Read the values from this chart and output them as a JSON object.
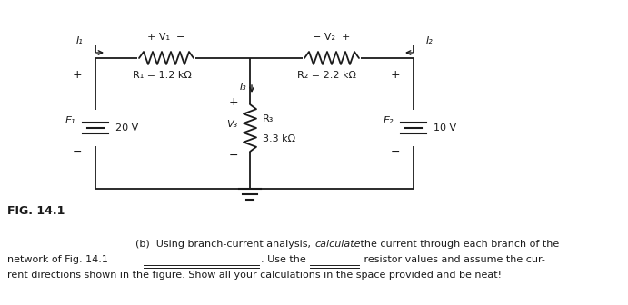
{
  "fig_label": "FIG. 14.1",
  "R1_label": "R₁ = 1.2 kΩ",
  "R2_label": "R₂ = 2.2 kΩ",
  "R3_top": "R₃",
  "R3_bot": "3.3 kΩ",
  "E1_label": "E₁",
  "E1_value": "20 V",
  "E2_label": "E₂",
  "E2_value": "10 V",
  "V1_label": "+ V₁  −",
  "V2_label": "− V₂  +",
  "V3_label": "V₃",
  "I1_label": "I₁",
  "I2_label": "I₂",
  "I3_label": "I₃",
  "bg_color": "#ffffff",
  "line_color": "#1a1a1a",
  "fs": 8,
  "fs_fig": 9
}
